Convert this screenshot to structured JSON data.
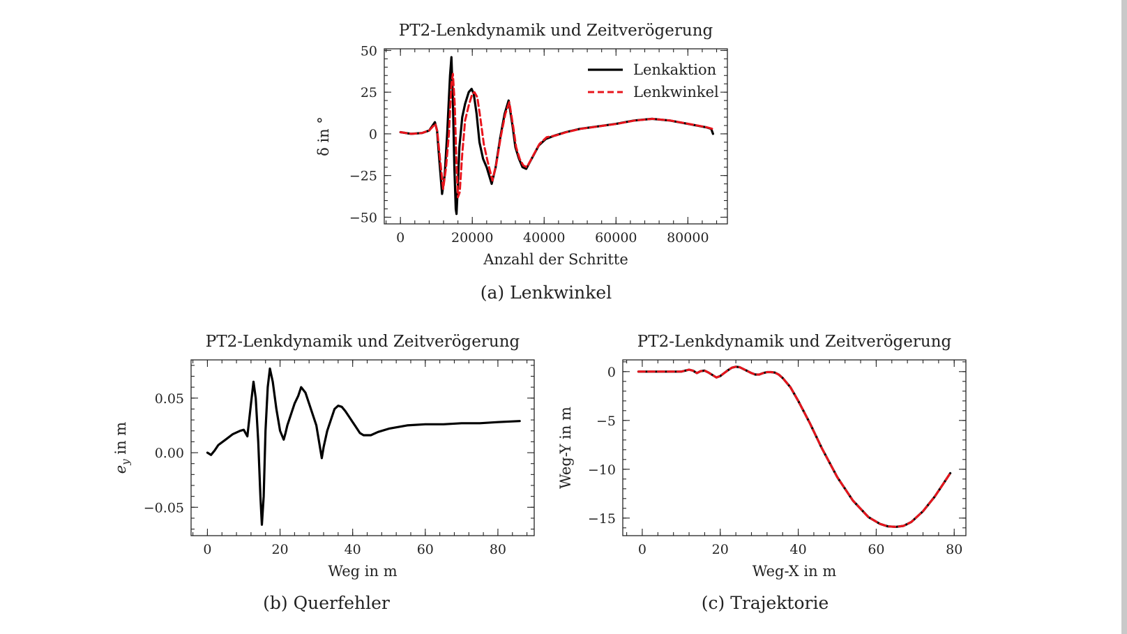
{
  "chart_data": [
    {
      "id": "a",
      "type": "line",
      "title": "PT2-Lenkdynamik und Zeitverögerung",
      "xlabel": "Anzahl der Schritte",
      "ylabel": "δ in °",
      "caption": "(a)  Lenkwinkel",
      "xlim": [
        -4500,
        91000
      ],
      "ylim": [
        -54,
        51
      ],
      "xticks": [
        0,
        20000,
        40000,
        60000,
        80000
      ],
      "yticks": [
        -50,
        -25,
        0,
        25,
        50
      ],
      "xtick_labels": [
        "0",
        "20000",
        "40000",
        "60000",
        "80000"
      ],
      "ytick_labels": [
        "−50",
        "−25",
        "0",
        "25",
        "50"
      ],
      "legend": {
        "position": "top-right",
        "entries": [
          "Lenkaktion",
          "Lenkwinkel"
        ]
      },
      "series": [
        {
          "name": "Lenkaktion",
          "color": "#000000",
          "style": "solid",
          "x": [
            0,
            3000,
            6000,
            8000,
            9600,
            10200,
            10800,
            11600,
            12300,
            13000,
            13800,
            14200,
            14600,
            15000,
            15400,
            15600,
            16000,
            16400,
            17200,
            18000,
            19000,
            19800,
            20400,
            21200,
            22000,
            23000,
            24000,
            25400,
            26500,
            27800,
            29000,
            30100,
            31200,
            32000,
            33000,
            34000,
            35000,
            36000,
            37000,
            38500,
            40500,
            43000,
            46000,
            50000,
            55000,
            60000,
            65000,
            70000,
            75000,
            80000,
            85000,
            86500,
            87000
          ],
          "y": [
            1,
            0,
            0.5,
            2,
            7,
            2,
            -15,
            -36,
            -25,
            0,
            35,
            46,
            20,
            -20,
            -45,
            -48,
            -30,
            -8,
            10,
            18,
            25,
            27,
            24,
            12,
            -5,
            -15,
            -20,
            -30,
            -20,
            -2,
            12,
            20,
            5,
            -8,
            -15,
            -20,
            -21,
            -17,
            -13,
            -7,
            -3,
            -1,
            1,
            3,
            4.5,
            6,
            8,
            9,
            8,
            6,
            4,
            3,
            0
          ]
        },
        {
          "name": "Lenkwinkel",
          "color": "#e8141c",
          "style": "dashed",
          "x": [
            0,
            3000,
            6000,
            8000,
            9700,
            10300,
            11000,
            11900,
            12700,
            13500,
            14200,
            14600,
            15100,
            15600,
            16000,
            16500,
            17200,
            18000,
            19000,
            20000,
            20600,
            21400,
            22200,
            23200,
            24200,
            25600,
            26700,
            28000,
            29200,
            30300,
            31400,
            32200,
            33200,
            34200,
            35200,
            36200,
            37200,
            38700,
            40700,
            43200,
            46200,
            50200,
            55200,
            60200,
            65200,
            70200,
            75200,
            80200,
            85200,
            86800
          ],
          "y": [
            1,
            0,
            0.5,
            2,
            6,
            1,
            -15,
            -33,
            -20,
            0,
            30,
            36,
            18,
            -18,
            -38,
            -35,
            -12,
            8,
            17,
            24,
            25,
            22,
            10,
            -6,
            -16,
            -28,
            -18,
            -1,
            12,
            19,
            4,
            -8,
            -15,
            -19,
            -20,
            -16,
            -12,
            -6,
            -2,
            -1,
            1,
            3,
            4.5,
            6,
            8,
            9,
            8,
            6,
            4,
            3
          ]
        }
      ]
    },
    {
      "id": "b",
      "type": "line",
      "title": "PT2-Lenkdynamik und Zeitverögerung",
      "xlabel": "Weg in m",
      "ylabel": "e",
      "ylabel_sub": "y",
      "ylabel_suffix": " in m",
      "caption": "(b) Querfehler",
      "xlim": [
        -4.5,
        90
      ],
      "ylim": [
        -0.076,
        0.085
      ],
      "xticks": [
        0,
        20,
        40,
        60,
        80
      ],
      "yticks": [
        -0.05,
        0,
        0.05
      ],
      "xtick_labels": [
        "0",
        "20",
        "40",
        "60",
        "80"
      ],
      "ytick_labels": [
        "−0.05",
        "0.00",
        "0.05"
      ],
      "series": [
        {
          "name": "",
          "color": "#000000",
          "style": "solid",
          "x": [
            0,
            1,
            2,
            3,
            5,
            7,
            9,
            10,
            11,
            12,
            12.7,
            13.3,
            14,
            14.6,
            15,
            15.5,
            16,
            16.6,
            17.2,
            18,
            19,
            20,
            21,
            21.5,
            22,
            23,
            24,
            25,
            25.8,
            27,
            28,
            29,
            30,
            31,
            31.5,
            32,
            33,
            34,
            35,
            36,
            37,
            38,
            39,
            40,
            41,
            42,
            43,
            44,
            45,
            47,
            50,
            55,
            60,
            65,
            70,
            75,
            80,
            86
          ],
          "y": [
            0,
            -0.002,
            0.002,
            0.007,
            0.012,
            0.017,
            0.02,
            0.021,
            0.015,
            0.045,
            0.065,
            0.05,
            0.01,
            -0.04,
            -0.066,
            -0.04,
            0.02,
            0.06,
            0.077,
            0.065,
            0.04,
            0.02,
            0.012,
            0.018,
            0.025,
            0.035,
            0.045,
            0.052,
            0.06,
            0.055,
            0.045,
            0.035,
            0.025,
            0.005,
            -0.005,
            0.005,
            0.02,
            0.03,
            0.04,
            0.043,
            0.042,
            0.038,
            0.033,
            0.028,
            0.023,
            0.018,
            0.016,
            0.016,
            0.016,
            0.019,
            0.022,
            0.025,
            0.026,
            0.026,
            0.027,
            0.027,
            0.028,
            0.029
          ]
        }
      ]
    },
    {
      "id": "c",
      "type": "line",
      "title": "PT2-Lenkdynamik und Zeitverögerung",
      "xlabel": "Weg-X in m",
      "ylabel": "Weg-Y in m",
      "caption": "(c)  Trajektorie",
      "xlim": [
        -5,
        83
      ],
      "ylim": [
        -16.8,
        1.2
      ],
      "xticks": [
        0,
        20,
        40,
        60,
        80
      ],
      "yticks": [
        -15,
        -10,
        -5,
        0
      ],
      "xtick_labels": [
        "0",
        "20",
        "40",
        "60",
        "80"
      ],
      "ytick_labels": [
        "−15",
        "−10",
        "−5",
        "0"
      ],
      "series": [
        {
          "name": "",
          "color": "#000000",
          "style": "solid",
          "x": [
            -1,
            2,
            5,
            8,
            10,
            11,
            12,
            13,
            14,
            15,
            16,
            17,
            18,
            19,
            20,
            21,
            22,
            23,
            24,
            25,
            26,
            27,
            28,
            29,
            30,
            31,
            32,
            33,
            34,
            35,
            36,
            38,
            40,
            43,
            46,
            50,
            54,
            58,
            61,
            63,
            65,
            67,
            69,
            72,
            75,
            77,
            79
          ],
          "y": [
            0,
            0,
            0,
            0,
            0,
            0.1,
            0.2,
            0.1,
            -0.15,
            0.05,
            0.1,
            -0.1,
            -0.35,
            -0.6,
            -0.45,
            -0.15,
            0.15,
            0.4,
            0.5,
            0.45,
            0.25,
            0.05,
            -0.15,
            -0.3,
            -0.3,
            -0.15,
            -0.05,
            -0.05,
            -0.1,
            -0.3,
            -0.65,
            -1.6,
            -3.0,
            -5.3,
            -7.8,
            -10.8,
            -13.2,
            -14.9,
            -15.6,
            -15.85,
            -15.9,
            -15.8,
            -15.4,
            -14.3,
            -12.8,
            -11.6,
            -10.4
          ]
        },
        {
          "name": "",
          "color": "#e8141c",
          "style": "dashed",
          "x": [
            -1,
            2,
            5,
            8,
            10,
            11,
            12,
            13,
            14,
            15,
            16,
            17,
            18,
            19,
            20,
            21,
            22,
            23,
            24,
            25,
            26,
            27,
            28,
            29,
            30,
            31,
            32,
            33,
            34,
            35,
            36,
            38,
            40,
            43,
            46,
            50,
            54,
            58,
            61,
            63,
            65,
            67,
            69,
            72,
            75,
            77,
            79
          ],
          "y": [
            0,
            0,
            0,
            0,
            0,
            0.1,
            0.2,
            0.1,
            -0.15,
            0.05,
            0.1,
            -0.1,
            -0.35,
            -0.6,
            -0.45,
            -0.15,
            0.15,
            0.4,
            0.5,
            0.45,
            0.25,
            0.05,
            -0.15,
            -0.3,
            -0.3,
            -0.15,
            -0.05,
            -0.05,
            -0.1,
            -0.3,
            -0.65,
            -1.6,
            -3.0,
            -5.3,
            -7.8,
            -10.8,
            -13.2,
            -14.9,
            -15.6,
            -15.85,
            -15.9,
            -15.8,
            -15.4,
            -14.3,
            -12.8,
            -11.6,
            -10.4
          ]
        }
      ]
    }
  ]
}
